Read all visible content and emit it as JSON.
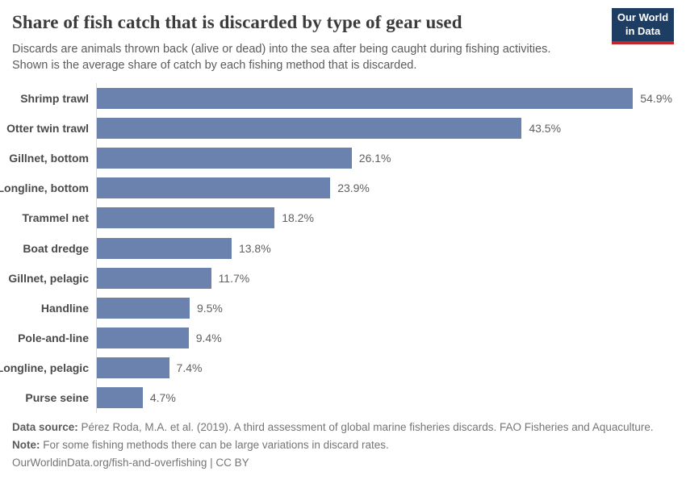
{
  "header": {
    "title": "Share of fish catch that is discarded by type of gear used",
    "subtitle_line1": "Discards are animals thrown back (alive or dead) into the sea after being caught during fishing activities.",
    "subtitle_line2": "Shown is the average share of catch by each fishing method that is discarded.",
    "logo": {
      "line1": "Our World",
      "line2": "in Data",
      "bg_color": "#1d3d63",
      "accent_color": "#c5262c"
    }
  },
  "chart_data": {
    "type": "bar",
    "orientation": "horizontal",
    "categories": [
      "Shrimp trawl",
      "Otter twin trawl",
      "Gillnet, bottom",
      "Longline, bottom",
      "Trammel net",
      "Boat dredge",
      "Gillnet, pelagic",
      "Handline",
      "Pole-and-line",
      "Longline, pelagic",
      "Purse seine"
    ],
    "values": [
      54.9,
      43.5,
      26.1,
      23.9,
      18.2,
      13.8,
      11.7,
      9.5,
      9.4,
      7.4,
      4.7
    ],
    "value_labels": [
      "54.9%",
      "43.5%",
      "26.1%",
      "23.9%",
      "18.2%",
      "13.8%",
      "11.7%",
      "9.5%",
      "9.4%",
      "7.4%",
      "4.7%"
    ],
    "unit": "%",
    "xlim": [
      0,
      57
    ],
    "grid": false,
    "legend": "none",
    "bar_color": "#6c82ae",
    "axis_line_color": "#d9d9d9"
  },
  "footer": {
    "source_label": "Data source:",
    "source_text": " Pérez Roda, M.A. et al. (2019). A third assessment of global marine fisheries discards. FAO Fisheries and Aquaculture.",
    "note_label": "Note:",
    "note_text": " For some fishing methods there can be large variations in discard rates.",
    "url_line": "OurWorldinData.org/fish-and-overfishing | CC BY"
  }
}
